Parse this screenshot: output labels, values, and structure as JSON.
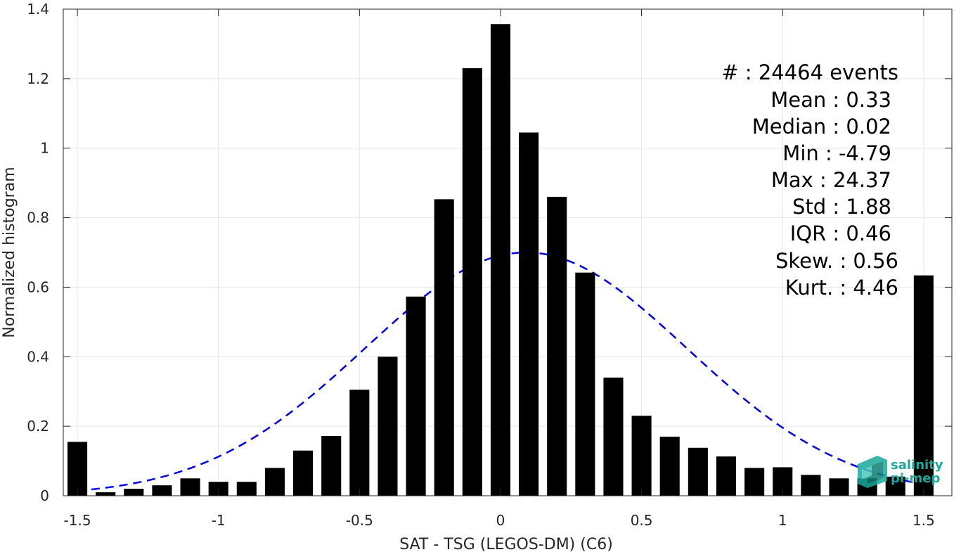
{
  "chart_data": {
    "type": "bar",
    "title": "",
    "xlabel": "SAT - TSG (LEGOS-DM) (C6)",
    "ylabel": "Normalized histogram",
    "xlim": [
      -1.55,
      1.6
    ],
    "ylim": [
      0,
      1.4
    ],
    "xticks": [
      -1.5,
      -1,
      -0.5,
      0,
      0.5,
      1,
      1.5
    ],
    "xtick_labels": [
      "-1.5",
      "-1",
      "-0.5",
      "0",
      "0.5",
      "1",
      "1.5"
    ],
    "yticks": [
      0,
      0.2,
      0.4,
      0.6,
      0.8,
      1,
      1.2,
      1.4
    ],
    "ytick_labels": [
      "0",
      "0.2",
      "0.4",
      "0.6",
      "0.8",
      "1",
      "1.2",
      "1.4"
    ],
    "grid": true,
    "bar_width": 0.07,
    "bar_color": "#000000",
    "x": [
      -1.5,
      -1.4,
      -1.3,
      -1.2,
      -1.1,
      -1.0,
      -0.9,
      -0.8,
      -0.7,
      -0.6,
      -0.5,
      -0.4,
      -0.3,
      -0.2,
      -0.1,
      0.0,
      0.1,
      0.2,
      0.3,
      0.4,
      0.5,
      0.6,
      0.7,
      0.8,
      0.9,
      1.0,
      1.1,
      1.2,
      1.3,
      1.4,
      1.5
    ],
    "values": [
      0.155,
      0.01,
      0.02,
      0.03,
      0.05,
      0.04,
      0.04,
      0.08,
      0.13,
      0.172,
      0.305,
      0.4,
      0.573,
      0.853,
      1.23,
      1.357,
      1.045,
      0.86,
      0.642,
      0.34,
      0.23,
      0.17,
      0.138,
      0.113,
      0.08,
      0.082,
      0.06,
      0.05,
      0.05,
      0.055,
      0.634
    ],
    "fit_curve": {
      "style": "dashed",
      "color": "#0000ee",
      "mean": 0.09,
      "std": 0.57,
      "peak": 0.7,
      "x_range": [
        -1.5,
        1.5
      ]
    },
    "annotations": [
      "#  : 24464 events",
      "Mean : 0.33",
      "Median : 0.02",
      "Min : -4.79",
      "Max : 24.37",
      "Std : 1.88",
      "IQR : 0.46",
      "Skew. : 0.56",
      "Kurt. : 4.46"
    ]
  },
  "logo": {
    "line1": "salinity",
    "line2": "pi-mep",
    "color": "#1aa99a"
  }
}
